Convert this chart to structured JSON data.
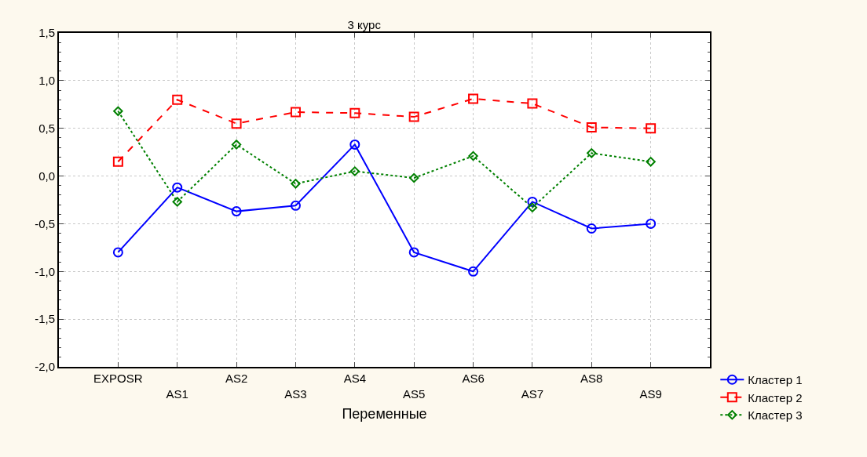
{
  "chart_data": {
    "type": "line",
    "title": "3 курс",
    "xlabel": "Переменные",
    "categories": [
      "EXPOSR",
      "AS1",
      "AS2",
      "AS3",
      "AS4",
      "AS5",
      "AS6",
      "AS7",
      "AS8",
      "AS9"
    ],
    "series": [
      {
        "name": "Кластер 1",
        "color": "#0000ff",
        "marker": "circle",
        "line_style": "solid",
        "values": [
          -0.8,
          -0.12,
          -0.37,
          -0.31,
          0.33,
          -0.8,
          -1.0,
          -0.27,
          -0.55,
          -0.5
        ]
      },
      {
        "name": "Кластер 2",
        "color": "#ff0000",
        "marker": "square",
        "line_style": "dashed",
        "values": [
          0.15,
          0.8,
          0.55,
          0.67,
          0.66,
          0.62,
          0.81,
          0.76,
          0.51,
          0.5
        ]
      },
      {
        "name": "Кластер 3",
        "color": "#008000",
        "marker": "diamond",
        "line_style": "dotted",
        "values": [
          0.68,
          -0.27,
          0.33,
          -0.08,
          0.05,
          -0.02,
          0.21,
          -0.33,
          0.24,
          0.15
        ]
      }
    ],
    "ylim": [
      -2.0,
      1.5
    ],
    "yticks": [
      {
        "value": -2.0,
        "label": "-2,0"
      },
      {
        "value": -1.5,
        "label": "-1,5"
      },
      {
        "value": -1.0,
        "label": "-1,0"
      },
      {
        "value": -0.5,
        "label": "-0,5"
      },
      {
        "value": 0.0,
        "label": "0,0"
      },
      {
        "value": 0.5,
        "label": "0,5"
      },
      {
        "value": 1.0,
        "label": "1,0"
      },
      {
        "value": 1.5,
        "label": "1,5"
      }
    ],
    "grid": true,
    "legend": "bottom right"
  }
}
